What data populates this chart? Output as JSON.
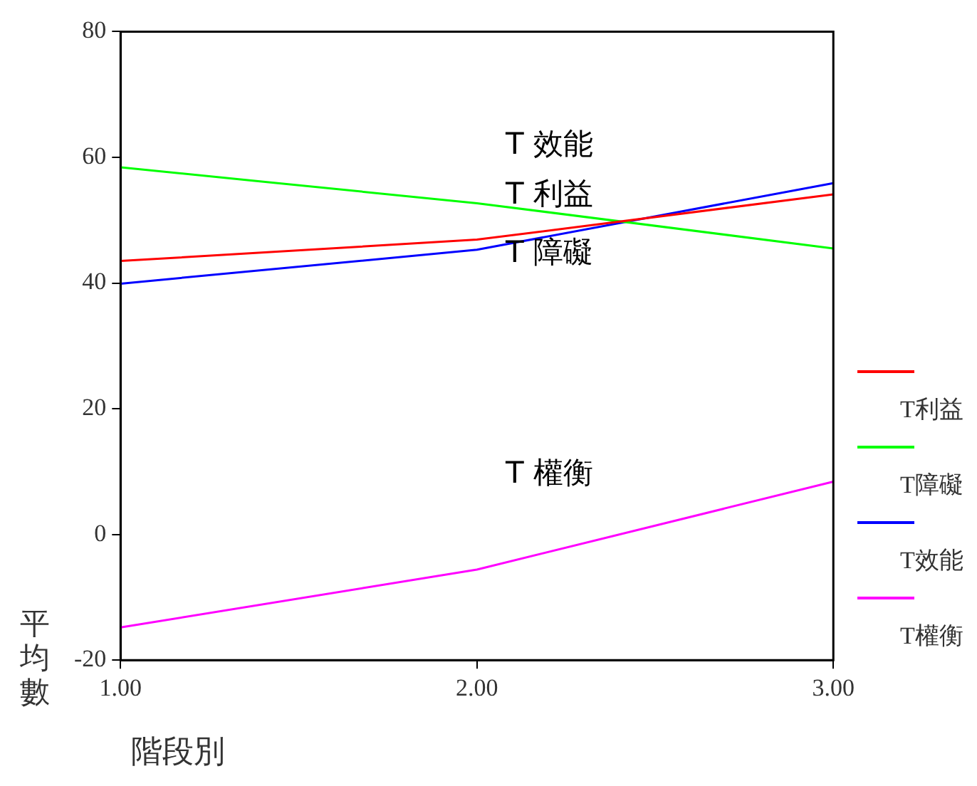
{
  "chart_data": {
    "type": "line",
    "xlabel": "階段別",
    "ylabel": "平均數",
    "x": [
      1,
      2,
      3
    ],
    "xlim": [
      1,
      3
    ],
    "xticks": [
      {
        "value": 1,
        "label": "1.00"
      },
      {
        "value": 2,
        "label": "2.00"
      },
      {
        "value": 3,
        "label": "3.00"
      }
    ],
    "ylim": [
      -20,
      80
    ],
    "yticks": [
      -20,
      0,
      20,
      40,
      60,
      80
    ],
    "series": [
      {
        "name": "T利益",
        "color": "#ff0000",
        "values": [
          43.5,
          46.9,
          54.1
        ]
      },
      {
        "name": "T障礙",
        "color": "#00ff00",
        "values": [
          58.4,
          52.7,
          45.5
        ]
      },
      {
        "name": "T效能",
        "color": "#0000ff",
        "values": [
          39.9,
          45.3,
          55.9
        ]
      },
      {
        "name": "T權衡",
        "color": "#ff00ff",
        "values": [
          -14.8,
          -5.6,
          8.4
        ]
      }
    ],
    "annotations": [
      "T 效能",
      "T 利益",
      "T 障礙",
      "T 權衡"
    ],
    "grid": false,
    "legend": "right",
    "marker": "none",
    "line_style": "solid"
  }
}
